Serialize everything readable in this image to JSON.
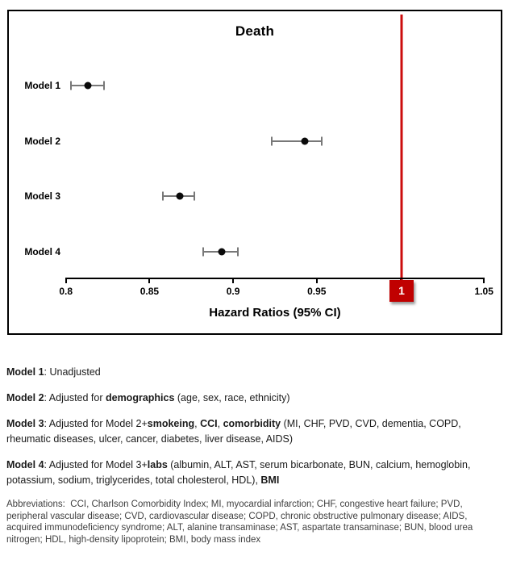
{
  "chart_data": {
    "type": "scatter",
    "subtype": "forest-plot",
    "title": "Death",
    "xlabel": "Hazard Ratios (95% CI)",
    "xlim": [
      0.8,
      1.05
    ],
    "x_ticks": [
      0.8,
      0.85,
      0.9,
      0.95,
      1,
      1.05
    ],
    "grid": false,
    "legend": "none",
    "reference_line": {
      "value": 1,
      "label": "1",
      "line_color": "#cc0d0d",
      "box_color": "#c00000"
    },
    "marker_color": "#0a0a0a",
    "error_bar_color": "#787878",
    "rows": [
      {
        "label": "Model 1",
        "hr": 0.813,
        "ci_low": 0.803,
        "ci_high": 0.823
      },
      {
        "label": "Model 2",
        "hr": 0.943,
        "ci_low": 0.923,
        "ci_high": 0.953
      },
      {
        "label": "Model 3",
        "hr": 0.868,
        "ci_low": 0.858,
        "ci_high": 0.877
      },
      {
        "label": "Model 4",
        "hr": 0.893,
        "ci_low": 0.882,
        "ci_high": 0.903
      }
    ]
  },
  "footer": {
    "footnotes": [
      {
        "name": "footnote-model-1",
        "segments": [
          {
            "t": "Model 1",
            "b": true
          },
          {
            "t": ": Unadjusted",
            "b": false
          }
        ]
      },
      {
        "name": "footnote-model-2",
        "segments": [
          {
            "t": "Model 2",
            "b": true
          },
          {
            "t": ": Adjusted for ",
            "b": false
          },
          {
            "t": "demographics",
            "b": true
          },
          {
            "t": " (age, sex, race, ethnicity)",
            "b": false
          }
        ]
      },
      {
        "name": "footnote-model-3",
        "segments": [
          {
            "t": "Model 3",
            "b": true
          },
          {
            "t": ": Adjusted for Model 2+",
            "b": false
          },
          {
            "t": "smokeing",
            "b": true
          },
          {
            "t": ", ",
            "b": false
          },
          {
            "t": "CCI",
            "b": true
          },
          {
            "t": ", ",
            "b": false
          },
          {
            "t": "comorbidity",
            "b": true
          },
          {
            "t": " (MI, CHF, PVD, CVD, dementia, COPD, rheumatic diseases, ulcer, cancer, diabetes, liver disease, AIDS)",
            "b": false
          }
        ]
      },
      {
        "name": "footnote-model-4",
        "segments": [
          {
            "t": "Model 4",
            "b": true
          },
          {
            "t": ": Adjusted for Model 3+",
            "b": false
          },
          {
            "t": "labs",
            "b": true
          },
          {
            "t": " (albumin, ALT, AST, serum bicarbonate, BUN, calcium, hemoglobin, potassium, sodium, triglycerides, total cholesterol, HDL), ",
            "b": false
          },
          {
            "t": "BMI",
            "b": true
          }
        ]
      }
    ],
    "abbreviations": "Abbreviations:  CCI, Charlson Comorbidity Index; MI, myocardial infarction; CHF, congestive heart failure; PVD, peripheral vascular disease; CVD, cardiovascular disease; COPD, chronic obstructive pulmonary disease; AIDS, acquired immunodeficiency syndrome; ALT, alanine transaminase; AST, aspartate transaminase; BUN, blood urea nitrogen; HDL, high-density lipoprotein; BMI, body mass index"
  }
}
